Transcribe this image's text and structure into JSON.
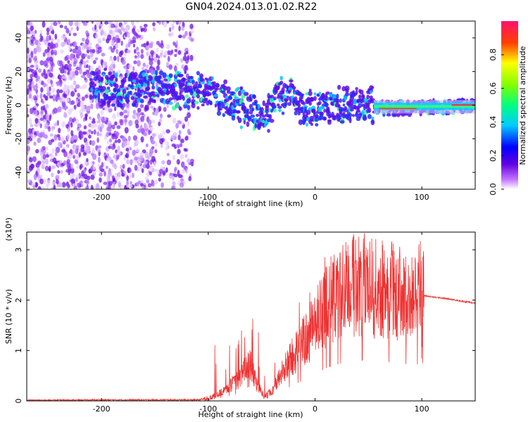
{
  "title": "GN04.2024.013.01.02.R22",
  "chart_data": [
    {
      "type": "heatmap",
      "xlabel": "Height of straight line (km)",
      "ylabel": "Frequency (Hz)",
      "xlim": [
        -270,
        150
      ],
      "ylim": [
        -50,
        50
      ],
      "xticks": [
        -200,
        -100,
        0,
        100
      ],
      "yticks": [
        -40,
        -20,
        0,
        20,
        40
      ],
      "colorbar": {
        "label": "Normalized spectral amplitude",
        "range": [
          0,
          1
        ],
        "ticks": [
          0.0,
          0.2,
          0.4,
          0.6,
          0.8
        ],
        "tick_labels": [
          "0.0",
          "0.2",
          "0.4",
          "0.6",
          "0.8"
        ],
        "colormap": "rainbow"
      },
      "signal_track": [
        {
          "x": -205,
          "y": 12
        },
        {
          "x": -195,
          "y": 10
        },
        {
          "x": -120,
          "y": 10
        },
        {
          "x": -100,
          "y": 8
        },
        {
          "x": -80,
          "y": 2
        },
        {
          "x": -60,
          "y": -4
        },
        {
          "x": -45,
          "y": -6
        },
        {
          "x": -35,
          "y": 5
        },
        {
          "x": -20,
          "y": 4
        },
        {
          "x": -10,
          "y": -2
        },
        {
          "x": 10,
          "y": 0
        },
        {
          "x": 30,
          "y": 0
        },
        {
          "x": 50,
          "y": 0
        },
        {
          "x": 70,
          "y": -2
        },
        {
          "x": 90,
          "y": -2
        },
        {
          "x": 120,
          "y": -1
        },
        {
          "x": 150,
          "y": 0
        }
      ]
    },
    {
      "type": "line",
      "xlabel": "Height of straight line (km)",
      "ylabel": "SNR (10 * v/v)",
      "scale_label": "(x10⁴)",
      "xlim": [
        -270,
        150
      ],
      "ylim": [
        0,
        3.35
      ],
      "xticks": [
        -200,
        -100,
        0,
        100
      ],
      "yticks": [
        0,
        1,
        2,
        3
      ],
      "color": "#ee3333",
      "series": [
        {
          "envelope": [
            {
              "x": -270,
              "y": 0.01
            },
            {
              "x": -200,
              "y": 0.02
            },
            {
              "x": -110,
              "y": 0.02
            },
            {
              "x": -100,
              "y": 0.05
            },
            {
              "x": -85,
              "y": 0.2
            },
            {
              "x": -70,
              "y": 0.45
            },
            {
              "x": -62,
              "y": 0.8
            },
            {
              "x": -55,
              "y": 0.35
            },
            {
              "x": -48,
              "y": 0.1
            },
            {
              "x": -40,
              "y": 0.2
            },
            {
              "x": -30,
              "y": 0.6
            },
            {
              "x": -20,
              "y": 0.9
            },
            {
              "x": -10,
              "y": 1.2
            },
            {
              "x": 0,
              "y": 1.5
            },
            {
              "x": 10,
              "y": 1.85
            },
            {
              "x": 20,
              "y": 2.05
            },
            {
              "x": 30,
              "y": 2.25
            },
            {
              "x": 40,
              "y": 2.3
            },
            {
              "x": 50,
              "y": 2.3
            },
            {
              "x": 60,
              "y": 2.2
            },
            {
              "x": 70,
              "y": 2.2
            },
            {
              "x": 80,
              "y": 2.15
            },
            {
              "x": 90,
              "y": 2.05
            },
            {
              "x": 100,
              "y": 2.1
            },
            {
              "x": 110,
              "y": 2.06
            },
            {
              "x": 120,
              "y": 2.04
            },
            {
              "x": 140,
              "y": 1.97
            },
            {
              "x": 150,
              "y": 1.94
            }
          ]
        }
      ]
    }
  ]
}
